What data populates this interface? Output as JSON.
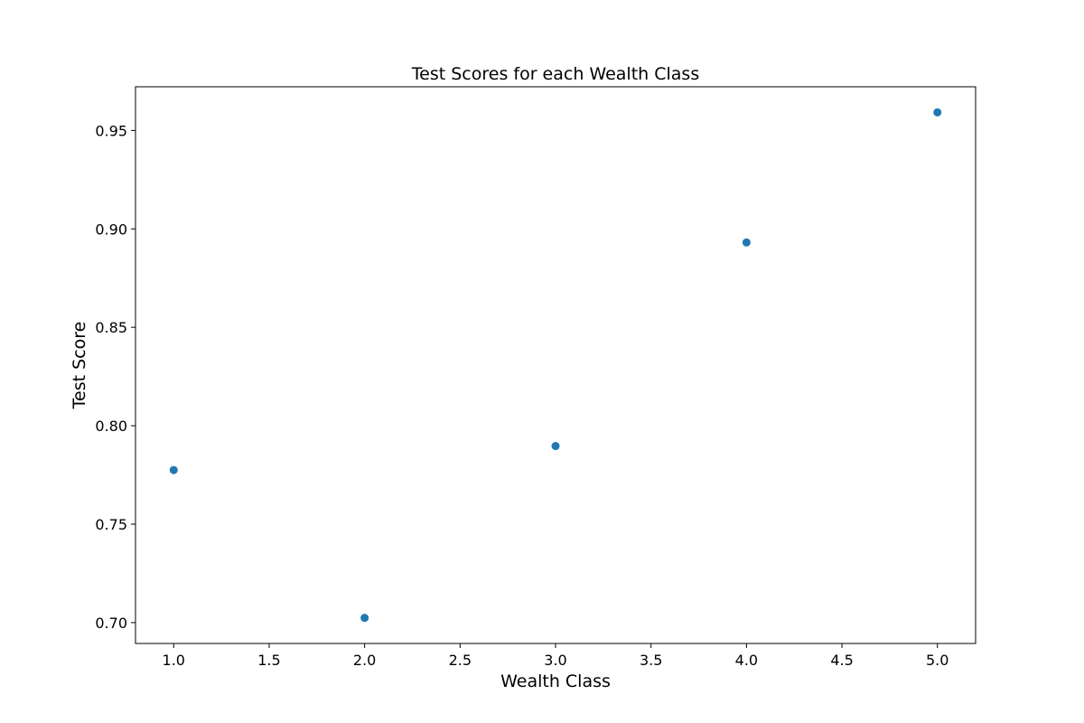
{
  "chart_data": {
    "type": "scatter",
    "title": "Test Scores for each Wealth Class",
    "xlabel": "Wealth Class",
    "ylabel": "Test Score",
    "xlim": [
      0.8,
      5.2
    ],
    "ylim": [
      0.6894,
      0.9722
    ],
    "xticks": [
      1.0,
      1.5,
      2.0,
      2.5,
      3.0,
      3.5,
      4.0,
      4.5,
      5.0
    ],
    "xtick_labels": [
      "1.0",
      "1.5",
      "2.0",
      "2.5",
      "3.0",
      "3.5",
      "4.0",
      "4.5",
      "5.0"
    ],
    "yticks": [
      0.7,
      0.75,
      0.8,
      0.85,
      0.9,
      0.95
    ],
    "ytick_labels": [
      "0.70",
      "0.75",
      "0.80",
      "0.85",
      "0.90",
      "0.95"
    ],
    "grid": false,
    "legend": false,
    "series": [
      {
        "color": "#1f77b4",
        "x": [
          1,
          2,
          3,
          4,
          5
        ],
        "y": [
          0.7775,
          0.7024,
          0.7897,
          0.8931,
          0.9592
        ]
      }
    ]
  }
}
